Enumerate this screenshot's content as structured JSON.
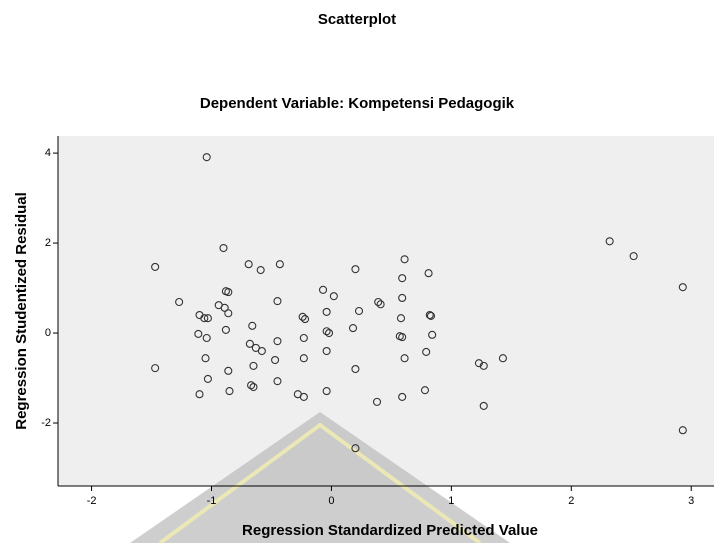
{
  "chart_data": {
    "type": "scatter",
    "title": "Scatterplot",
    "subtitle": "Dependent Variable: Kompetensi Pedagogik",
    "x_label": "Regression Standardized Predicted Value",
    "y_label": "Regression Studentized Residual",
    "xlim": [
      -2.28,
      3.19
    ],
    "ylim": [
      -3.4,
      4.38
    ],
    "xticks": [
      -2,
      -1,
      0,
      1,
      2,
      3
    ],
    "yticks": [
      -2,
      0,
      2,
      4
    ],
    "marker_color": "#333333",
    "x": [
      -1.04,
      -0.9,
      -1.47,
      -0.69,
      -0.59,
      -0.43,
      0.61,
      0.2,
      0.81,
      0.59,
      2.32,
      2.52,
      2.93,
      -1.27,
      -0.88,
      -0.86,
      -0.94,
      -1.1,
      -1.03,
      -1.06,
      -0.86,
      -0.89,
      -0.45,
      -0.07,
      0.02,
      -0.24,
      -0.22,
      -0.04,
      0.39,
      0.41,
      0.59,
      0.23,
      0.58,
      0.82,
      0.83,
      -1.11,
      -1.04,
      -0.88,
      -0.66,
      -0.04,
      -0.02,
      -0.23,
      0.18,
      0.57,
      0.59,
      0.84,
      -0.68,
      -0.63,
      -0.58,
      -0.45,
      -0.04,
      -1.05,
      -0.47,
      -0.23,
      0.61,
      0.79,
      -1.47,
      -0.86,
      -0.65,
      0.2,
      1.23,
      1.27,
      1.43,
      -1.03,
      -0.45,
      -0.67,
      -0.65,
      -1.1,
      -0.85,
      -0.28,
      -0.23,
      -0.04,
      0.38,
      0.59,
      0.78,
      1.27,
      2.93,
      0.2
    ],
    "y": [
      3.91,
      1.89,
      1.47,
      1.53,
      1.4,
      1.53,
      1.64,
      1.42,
      1.33,
      1.22,
      2.04,
      1.71,
      1.02,
      0.69,
      0.93,
      0.91,
      0.62,
      0.4,
      0.33,
      0.33,
      0.44,
      0.56,
      0.71,
      0.96,
      0.82,
      0.36,
      0.31,
      0.47,
      0.69,
      0.64,
      0.78,
      0.49,
      0.33,
      0.4,
      0.38,
      -0.02,
      -0.11,
      0.07,
      0.16,
      0.04,
      0,
      -0.11,
      0.11,
      -0.07,
      -0.09,
      -0.04,
      -0.24,
      -0.33,
      -0.4,
      -0.18,
      -0.4,
      -0.56,
      -0.6,
      -0.56,
      -0.56,
      -0.42,
      -0.78,
      -0.84,
      -0.73,
      -0.8,
      -0.67,
      -0.73,
      -0.56,
      -1.02,
      -1.07,
      -1.16,
      -1.2,
      -1.36,
      -1.29,
      -1.36,
      -1.42,
      -1.29,
      -1.53,
      -1.42,
      -1.27,
      -1.62,
      -2.16,
      -2.56
    ]
  }
}
